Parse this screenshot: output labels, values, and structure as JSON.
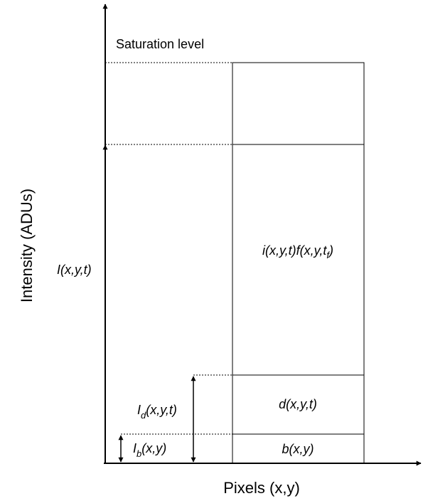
{
  "axes": {
    "y_label": "Intensity (ADUs)",
    "x_label": "Pixels (x,y)"
  },
  "labels": {
    "saturation": "Saturation level",
    "total": "I(x,y,t)",
    "dark_total": {
      "base": "I",
      "sub": "d",
      "rest": "(x,y,t)"
    },
    "bias_total": {
      "base": "I",
      "sub": "b",
      "rest": "(x,y)"
    }
  },
  "segments": {
    "signal": {
      "pre": "i(x,y,t)f(x,y,t",
      "sub": "f",
      "post": ")"
    },
    "dark": "d(x,y,t)",
    "bias": "b(x,y)"
  }
}
